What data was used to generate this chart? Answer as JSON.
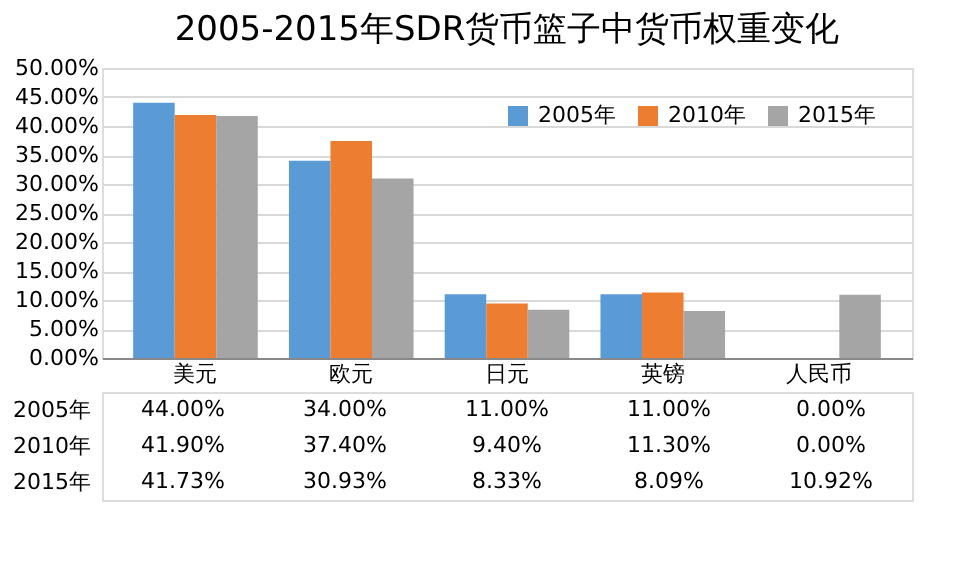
{
  "chart_data": {
    "type": "bar",
    "title": "2005-2015年SDR货币篮子中货币权重变化",
    "categories": [
      "美元",
      "欧元",
      "日元",
      "英镑",
      "人民币"
    ],
    "series": [
      {
        "name": "2005年",
        "color": "#5b9bd5",
        "values": [
          44,
          34,
          11,
          11,
          0
        ],
        "value_labels": [
          "44.00%",
          "34.00%",
          "11.00%",
          "11.00%",
          "0.00%"
        ]
      },
      {
        "name": "2010年",
        "color": "#ed7d31",
        "values": [
          41.9,
          37.4,
          9.4,
          11.3,
          0
        ],
        "value_labels": [
          "41.90%",
          "37.40%",
          "9.40%",
          "11.30%",
          "0.00%"
        ]
      },
      {
        "name": "2015年",
        "color": "#a5a5a5",
        "values": [
          41.73,
          30.93,
          8.33,
          8.09,
          10.92
        ],
        "value_labels": [
          "41.73%",
          "30.93%",
          "8.33%",
          "8.09%",
          "10.92%"
        ]
      }
    ],
    "ylim": [
      0,
      50
    ],
    "yticks": [
      {
        "value": 0,
        "label": "0.00%"
      },
      {
        "value": 5,
        "label": "5.00%"
      },
      {
        "value": 10,
        "label": "10.00%"
      },
      {
        "value": 15,
        "label": "15.00%"
      },
      {
        "value": 20,
        "label": "20.00%"
      },
      {
        "value": 25,
        "label": "25.00%"
      },
      {
        "value": 30,
        "label": "30.00%"
      },
      {
        "value": 35,
        "label": "35.00%"
      },
      {
        "value": 40,
        "label": "40.00%"
      },
      {
        "value": 45,
        "label": "45.00%"
      },
      {
        "value": 50,
        "label": "50.00%"
      }
    ],
    "grid": "y",
    "legend": "top right"
  }
}
